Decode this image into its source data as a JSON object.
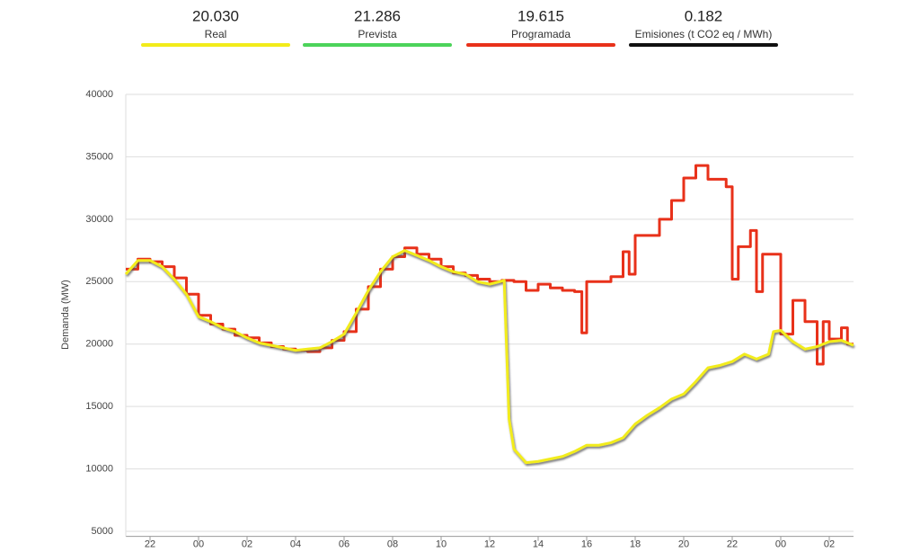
{
  "chart_data": {
    "type": "line",
    "y_label": "Demanda (MW)",
    "series": [
      {
        "name": "Real",
        "color": "#f2ec1a",
        "latest": "20.030",
        "shadow": true,
        "x": [
          21,
          21.5,
          22,
          22.5,
          23,
          23.5,
          24,
          24.5,
          25,
          25.5,
          26,
          26.5,
          27,
          27.5,
          28,
          28.5,
          29,
          29.5,
          30,
          30.5,
          31,
          31.5,
          32,
          32.5,
          33,
          33.5,
          34,
          34.5,
          35,
          35.5,
          36,
          36.6,
          36.8,
          37,
          37.5,
          38,
          38.5,
          39,
          39.5,
          40,
          40.5,
          41,
          41.5,
          42,
          42.5,
          43,
          43.5,
          44,
          44.5,
          45,
          45.5,
          46,
          46.5,
          47,
          47.5,
          47.7,
          48,
          48.5,
          49,
          49.5,
          50,
          50.5,
          51
        ],
        "values": [
          25600,
          26700,
          26700,
          26200,
          25200,
          24000,
          22200,
          21800,
          21300,
          21000,
          20500,
          20100,
          19900,
          19700,
          19500,
          19600,
          19700,
          20200,
          20800,
          22500,
          24300,
          25800,
          27000,
          27500,
          27100,
          26700,
          26200,
          25800,
          25600,
          25000,
          24800,
          25100,
          14000,
          11600,
          10500,
          10600,
          10800,
          11000,
          11400,
          11900,
          11900,
          12100,
          12500,
          13600,
          14300,
          14900,
          15600,
          16000,
          17000,
          18100,
          18300,
          18600,
          19200,
          18800,
          19200,
          21000,
          21100,
          20200,
          19600,
          19800,
          20200,
          20300,
          19900
        ]
      },
      {
        "name": "Prevista",
        "color": "#4cd35a",
        "latest": "21.286"
      },
      {
        "name": "Programada",
        "color": "#e8311a",
        "latest": "19.615",
        "step": true,
        "x": [
          21,
          21.5,
          22,
          22.5,
          23,
          23.5,
          24,
          24.5,
          25,
          25.5,
          26,
          26.5,
          27,
          27.5,
          28,
          28.5,
          29,
          29.5,
          30,
          30.5,
          31,
          31.5,
          32,
          32.5,
          33,
          33.5,
          34,
          34.5,
          35,
          35.5,
          36,
          36.5,
          37,
          37.5,
          38,
          38.5,
          39,
          39.5,
          39.8,
          40,
          41,
          41.5,
          41.75,
          42,
          43,
          43.5,
          44,
          44.5,
          45,
          45.75,
          46,
          46.25,
          46.75,
          47,
          47.25,
          48,
          48.5,
          49,
          49.5,
          49.75,
          50,
          50.5,
          50.75,
          51
        ],
        "values": [
          26000,
          26800,
          26600,
          26200,
          25300,
          24000,
          22300,
          21600,
          21200,
          20700,
          20500,
          20100,
          19800,
          19600,
          19500,
          19400,
          19700,
          20300,
          21000,
          22800,
          24600,
          26000,
          27000,
          27700,
          27200,
          26800,
          26200,
          25700,
          25500,
          25200,
          25000,
          25100,
          25000,
          24300,
          24800,
          24500,
          24300,
          24200,
          20900,
          25000,
          25400,
          27400,
          25600,
          28700,
          30000,
          31500,
          33300,
          34300,
          33200,
          32600,
          25200,
          27800,
          29100,
          24200,
          27200,
          20800,
          23500,
          21800,
          18400,
          21800,
          20400,
          21300,
          20000,
          20000
        ]
      },
      {
        "name": "Emisiones (t CO2 eq / MWh)",
        "color": "#111111",
        "latest": "0.182"
      }
    ],
    "xlim": [
      21,
      51
    ],
    "xticks": [
      {
        "value": 22,
        "label": "22"
      },
      {
        "value": 24,
        "label": "00"
      },
      {
        "value": 26,
        "label": "02"
      },
      {
        "value": 28,
        "label": "04"
      },
      {
        "value": 30,
        "label": "06"
      },
      {
        "value": 32,
        "label": "08"
      },
      {
        "value": 34,
        "label": "10"
      },
      {
        "value": 36,
        "label": "12"
      },
      {
        "value": 38,
        "label": "14"
      },
      {
        "value": 40,
        "label": "16"
      },
      {
        "value": 42,
        "label": "18"
      },
      {
        "value": 44,
        "label": "20"
      },
      {
        "value": 46,
        "label": "22"
      },
      {
        "value": 48,
        "label": "00"
      },
      {
        "value": 50,
        "label": "02"
      }
    ],
    "ylim": [
      4600,
      40000
    ],
    "yticks": [
      5000,
      10000,
      15000,
      20000,
      25000,
      30000,
      35000,
      40000
    ],
    "grid": true
  }
}
